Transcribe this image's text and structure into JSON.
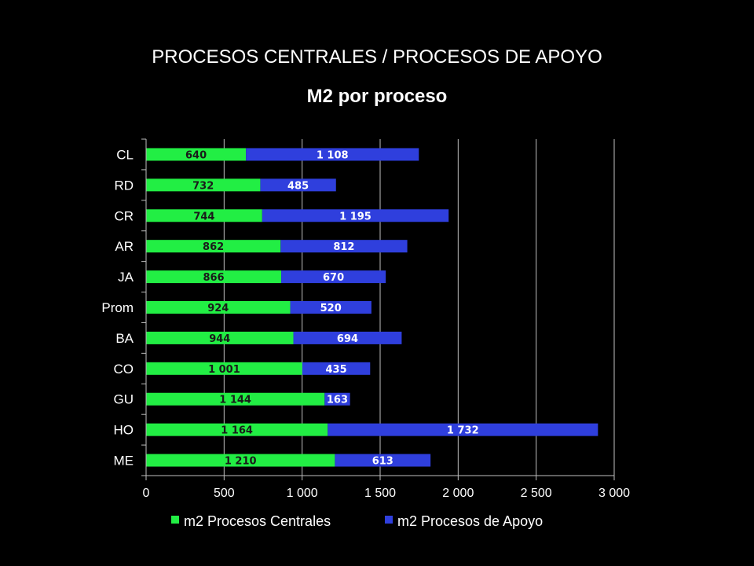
{
  "chart_data": {
    "type": "bar",
    "orientation": "horizontal",
    "stacked": true,
    "title": "PROCESOS CENTRALES / PROCESOS DE APOYO",
    "subtitle": "M2 por proceso",
    "categories": [
      "CL",
      "RD",
      "CR",
      "AR",
      "JA",
      "Prom",
      "BA",
      "CO",
      "GU",
      "HO",
      "ME"
    ],
    "series": [
      {
        "name": "m2 Procesos Centrales",
        "color": "#22ee44",
        "label_color": "#1a1a1a",
        "values": [
          640,
          732,
          744,
          862,
          866,
          924,
          944,
          1001,
          1144,
          1164,
          1210
        ],
        "labels": [
          "640",
          "732",
          "744",
          "862",
          "866",
          "924",
          "944",
          "1 001",
          "1 144",
          "1 164",
          "1 210"
        ]
      },
      {
        "name": "m2 Procesos de Apoyo",
        "color": "#2f3fdd",
        "label_color": "#ffffff",
        "values": [
          1108,
          485,
          1195,
          812,
          670,
          520,
          694,
          435,
          163,
          1732,
          613
        ],
        "labels": [
          "1 108",
          "485",
          "1 195",
          "812",
          "670",
          "520",
          "694",
          "435",
          "163",
          "1 732",
          "613"
        ]
      }
    ],
    "xlim": [
      0,
      3000
    ],
    "xticks": [
      0,
      500,
      1000,
      1500,
      2000,
      2500,
      3000
    ],
    "xtick_labels": [
      "0",
      "500",
      "1 000",
      "1 500",
      "2 000",
      "2 500",
      "3 000"
    ],
    "grid": true,
    "legend_position": "bottom",
    "background": "#000000",
    "grid_color": "#bfbfbf",
    "axis_color": "#bfbfbf"
  }
}
